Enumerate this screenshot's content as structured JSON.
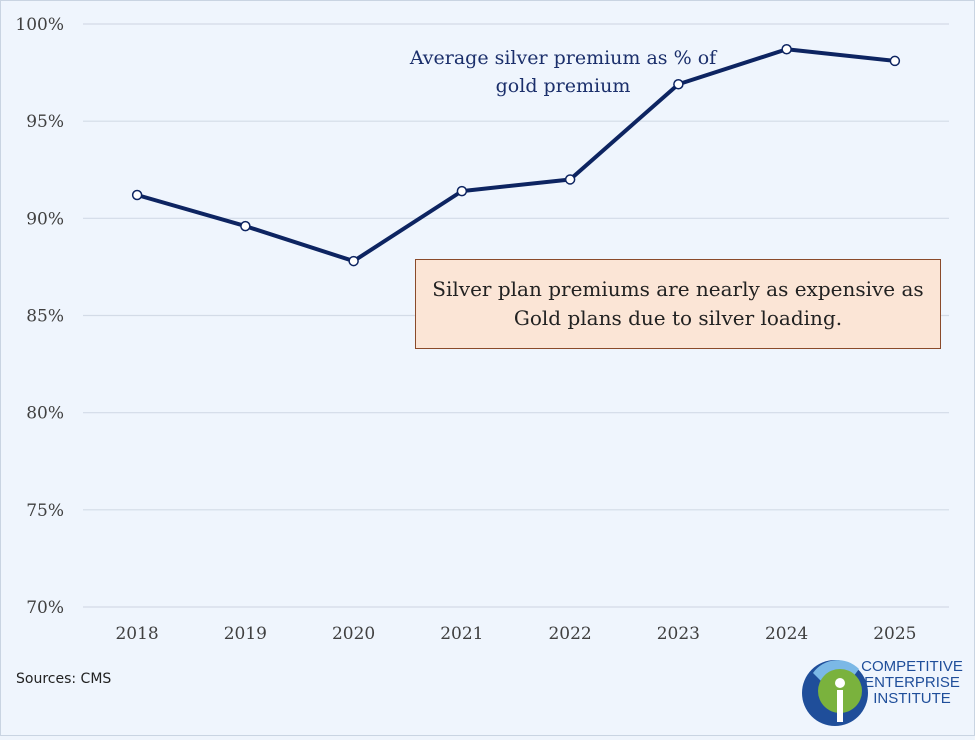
{
  "chart_data": {
    "type": "line",
    "title": "",
    "xlabel": "",
    "ylabel": "",
    "categories": [
      "2018",
      "2019",
      "2020",
      "2021",
      "2022",
      "2023",
      "2024",
      "2025"
    ],
    "series": [
      {
        "name": "Average silver premium as % of gold premium",
        "values": [
          91.2,
          89.6,
          87.8,
          91.4,
          92.0,
          96.9,
          98.7,
          98.1
        ]
      }
    ],
    "ylim": [
      70,
      100
    ],
    "yticks": [
      70,
      75,
      80,
      85,
      90,
      95,
      100
    ],
    "ytick_labels": [
      "70%",
      "75%",
      "80%",
      "85%",
      "90%",
      "95%",
      "100%"
    ],
    "grid": true,
    "series_label_lines": [
      "Average silver premium as % of",
      "gold premium"
    ],
    "annotation": "Silver plan premiums are nearly as expensive as Gold plans due to silver loading.",
    "colors": {
      "line": "#0d2461",
      "grid": "#d3dbe7",
      "marker_fill": "#ffffff",
      "callout_bg": "#fbe5d6",
      "callout_border": "#8a4a2a"
    }
  },
  "footer": {
    "sources": "Sources: CMS"
  },
  "logo": {
    "lines": [
      "COMPETITIVE",
      "ENTERPRISE",
      "INSTITUTE"
    ]
  }
}
